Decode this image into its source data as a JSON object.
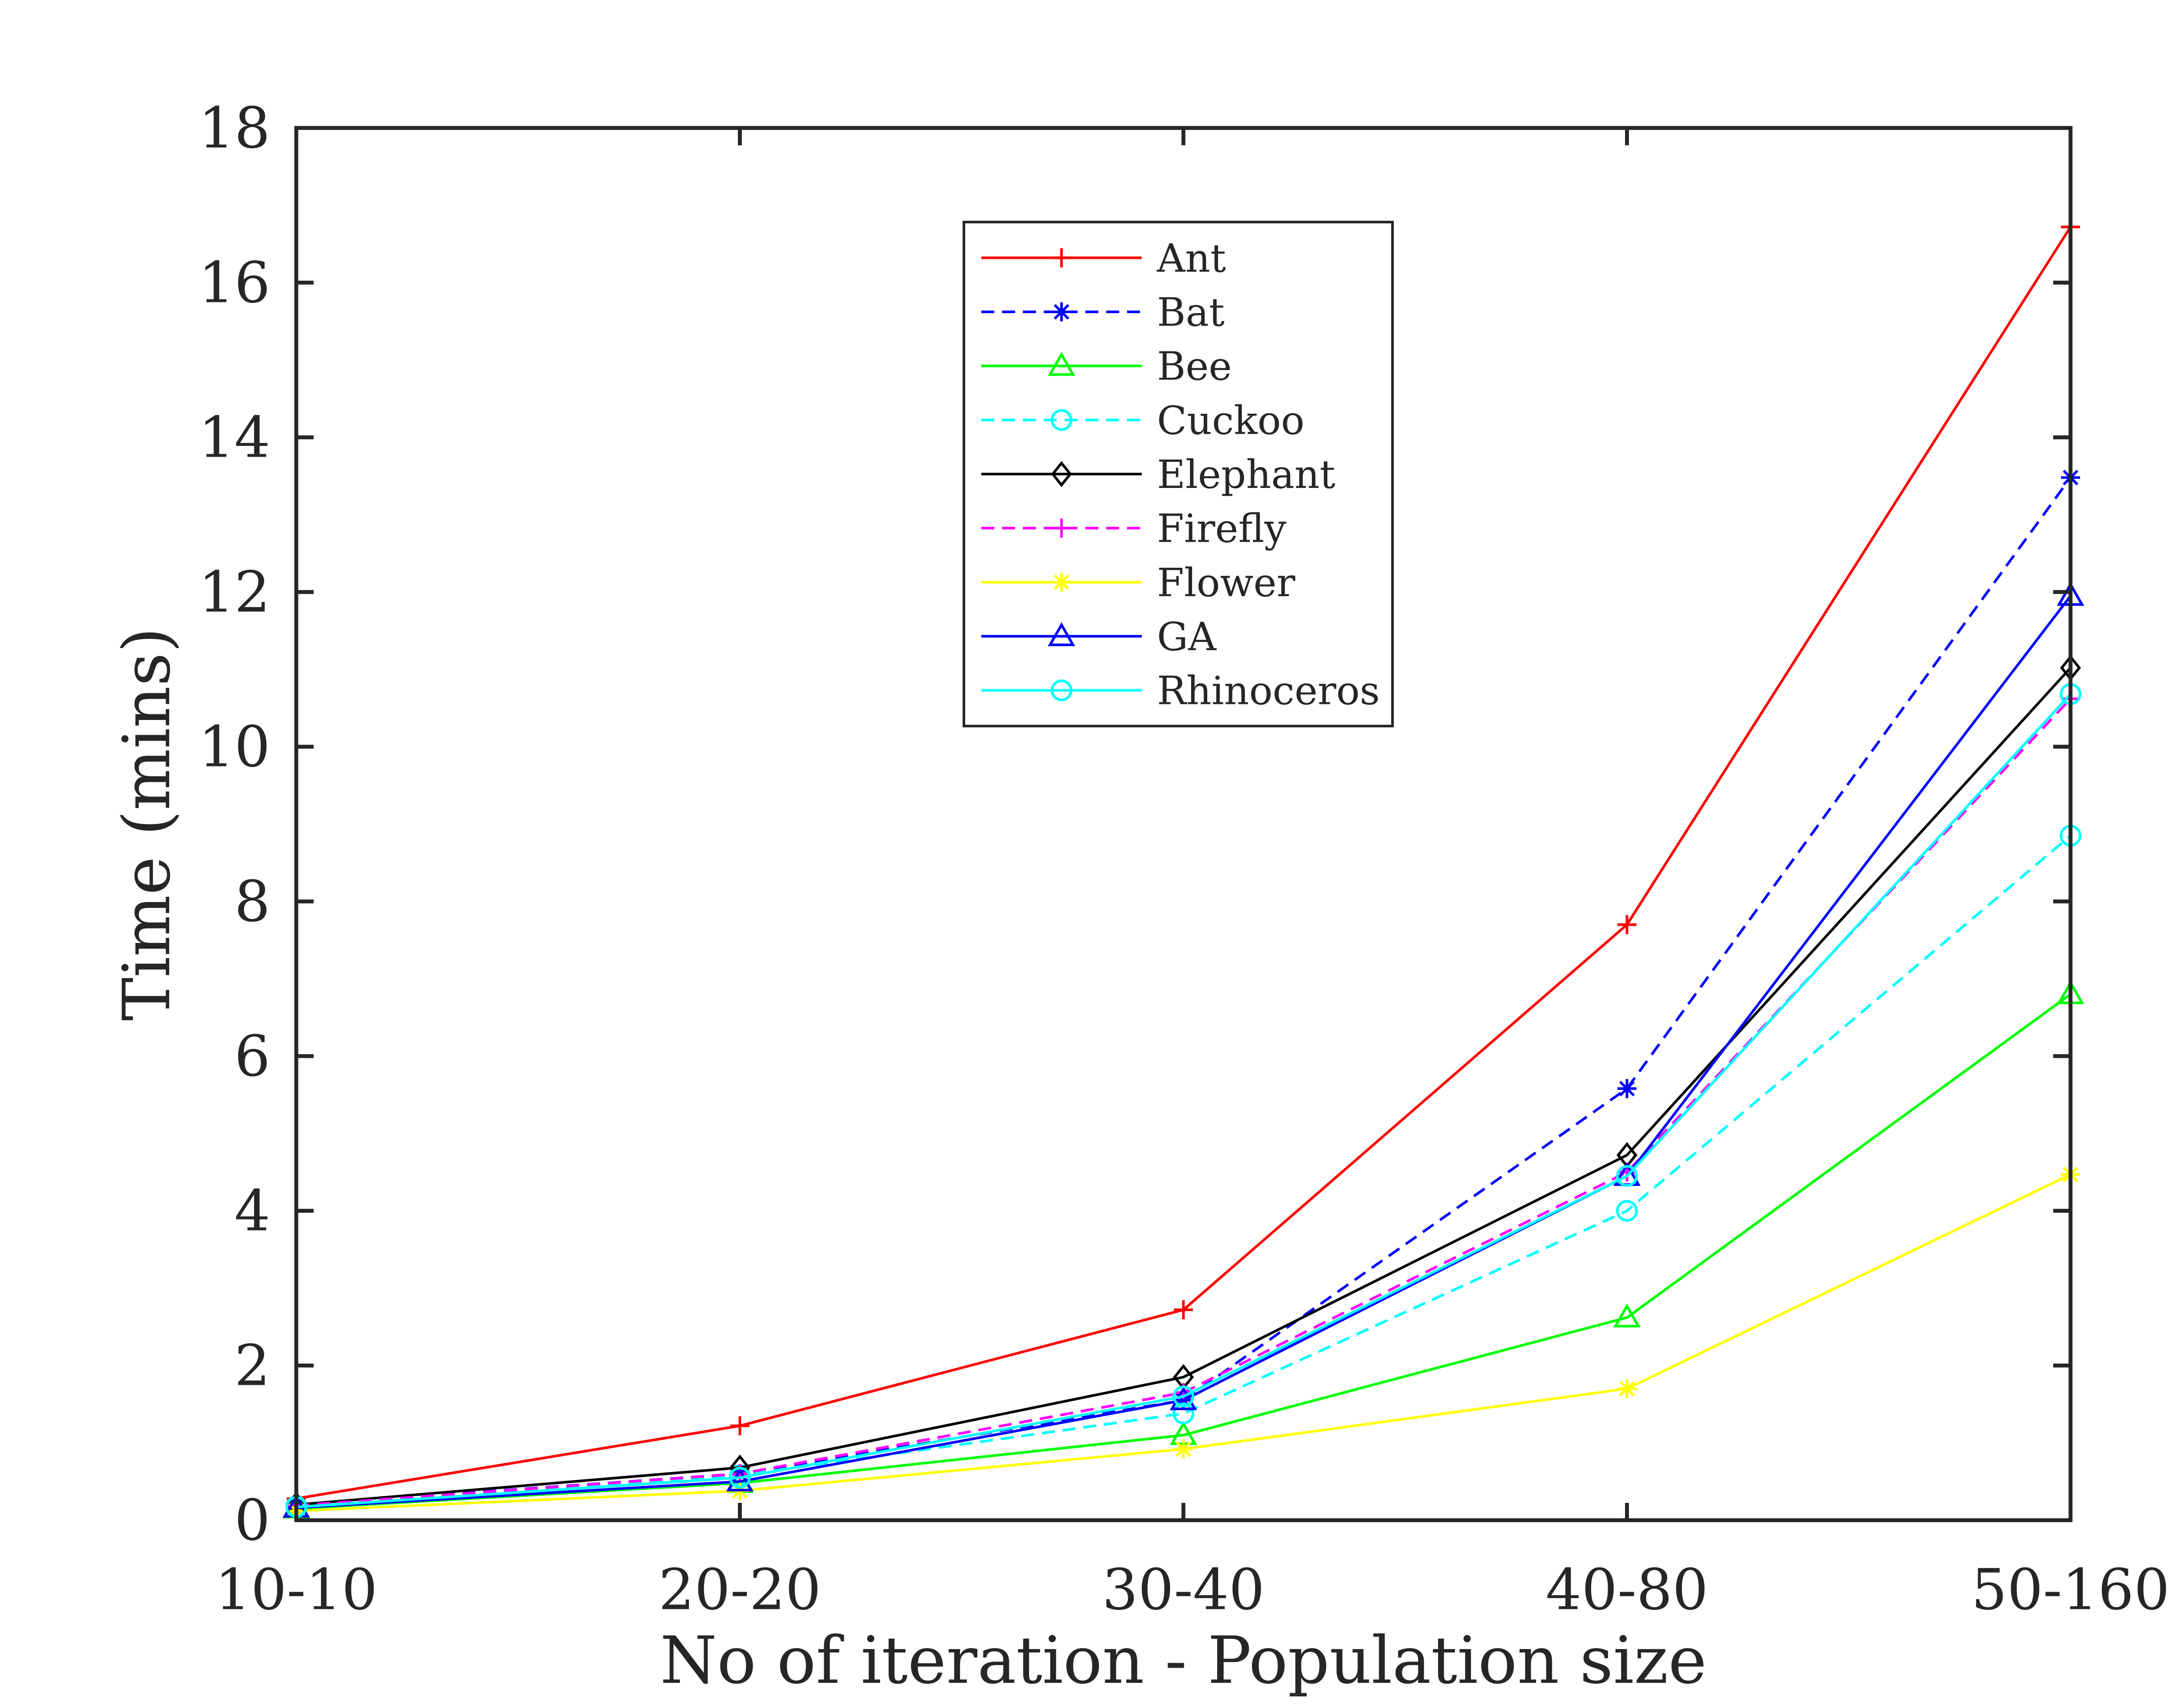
{
  "chart_data": {
    "type": "line",
    "title": "",
    "xlabel": "No of iteration - Population size",
    "ylabel": "Time (mins)",
    "categories": [
      "10-10",
      "20-20",
      "30-40",
      "40-80",
      "50-160"
    ],
    "ylim": [
      0,
      18
    ],
    "yticks": [
      0,
      2,
      4,
      6,
      8,
      10,
      12,
      14,
      16,
      18
    ],
    "grid": false,
    "legend_position": "top-center",
    "series": [
      {
        "name": "Ant",
        "color": "#ff0000",
        "dash": "solid",
        "marker": "plus",
        "values": [
          0.28,
          1.22,
          2.72,
          7.7,
          16.72
        ]
      },
      {
        "name": "Bat",
        "color": "#0000ff",
        "dash": "dashed",
        "marker": "asterisk",
        "values": [
          0.2,
          0.6,
          1.55,
          5.58,
          13.48
        ]
      },
      {
        "name": "Bee",
        "color": "#00ff00",
        "dash": "solid",
        "marker": "triangle",
        "values": [
          0.15,
          0.48,
          1.1,
          2.62,
          6.8
        ]
      },
      {
        "name": "Cuckoo",
        "color": "#00ffff",
        "dash": "dashed",
        "marker": "circle",
        "values": [
          0.18,
          0.58,
          1.38,
          4.0,
          8.85
        ]
      },
      {
        "name": "Elephant",
        "color": "#000000",
        "dash": "solid",
        "marker": "diamond",
        "values": [
          0.2,
          0.68,
          1.85,
          4.72,
          11.02
        ]
      },
      {
        "name": "Firefly",
        "color": "#ff00ff",
        "dash": "dashed",
        "marker": "plus",
        "values": [
          0.19,
          0.6,
          1.65,
          4.5,
          10.62
        ]
      },
      {
        "name": "Flower",
        "color": "#ffff00",
        "dash": "solid",
        "marker": "asterisk",
        "values": [
          0.12,
          0.38,
          0.92,
          1.7,
          4.47
        ]
      },
      {
        "name": "GA",
        "color": "#0000ff",
        "dash": "solid",
        "marker": "triangle",
        "values": [
          0.16,
          0.5,
          1.55,
          4.45,
          11.95
        ]
      },
      {
        "name": "Rhinoceros",
        "color": "#00ffff",
        "dash": "solid",
        "marker": "circle",
        "values": [
          0.17,
          0.55,
          1.6,
          4.45,
          10.68
        ]
      }
    ]
  }
}
